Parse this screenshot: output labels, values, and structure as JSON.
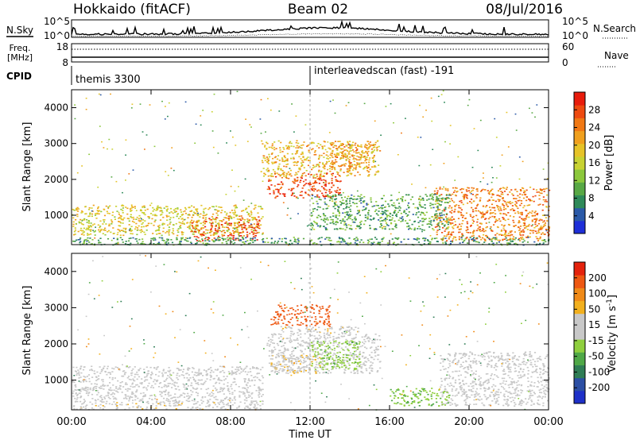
{
  "header": {
    "station": "Hokkaido (fitACF)",
    "beam": "Beam 02",
    "date": "08/Jul/2016"
  },
  "strips": {
    "nsky_label": "N.Sky",
    "nsky_ticks": [
      "10^5",
      "10^0"
    ],
    "nsearch_label": "N.Search",
    "nsearch_ticks": [
      "10^5",
      "10^0"
    ],
    "freq_label": "Freq.",
    "freq_unit": "[MHz]",
    "freq_ticks": [
      "18",
      "8"
    ],
    "nave_label": "Nave",
    "nave_ticks": [
      "60",
      "0"
    ],
    "cpid_label": "CPID",
    "cpid_segments": [
      {
        "label": "themis 3300",
        "start_hour": 0
      },
      {
        "label": "interleavedscan (fast) -191",
        "start_hour": 12
      }
    ]
  },
  "chart_data": [
    {
      "type": "heatmap",
      "quantity": "Power",
      "colorbar_label": "Power [dB]",
      "colorbar_ticks": [
        "28",
        "24",
        "20",
        "16",
        "12",
        "8",
        "4"
      ],
      "colorbar_range": [
        0,
        32
      ],
      "colorbar_colors": [
        "#1e2fd8",
        "#2b5aa8",
        "#2f8a5a",
        "#58a845",
        "#8cc83c",
        "#c8d232",
        "#e6c328",
        "#f0a01e",
        "#f07814",
        "#ee4a10",
        "#e81c0c"
      ],
      "ylabel": "Slant Range [km]",
      "y_ticks": [
        "4000",
        "3000",
        "2000",
        "1000"
      ],
      "ylim": [
        180,
        4500
      ],
      "xlim": [
        0,
        24
      ],
      "features": [
        {
          "x0": 0,
          "x1": 9.6,
          "y0": 450,
          "y1": 1300,
          "level": 18
        },
        {
          "x0": 6.0,
          "x1": 9.5,
          "y0": 300,
          "y1": 1000,
          "level": 27
        },
        {
          "x0": 9.8,
          "x1": 13.5,
          "y0": 1500,
          "y1": 2200,
          "level": 28
        },
        {
          "x0": 9.5,
          "x1": 15.5,
          "y0": 2100,
          "y1": 3100,
          "level": 20
        },
        {
          "x0": 13.0,
          "x1": 15.0,
          "y0": 2300,
          "y1": 3000,
          "level": 22
        },
        {
          "x0": 18.2,
          "x1": 24,
          "y0": 300,
          "y1": 1800,
          "level": 24
        },
        {
          "x0": 12.0,
          "x1": 19.0,
          "y0": 600,
          "y1": 1600,
          "level": 10
        },
        {
          "x0": 0,
          "x1": 24,
          "y0": 180,
          "y1": 400,
          "level": 9
        }
      ]
    },
    {
      "type": "heatmap",
      "quantity": "Velocity",
      "colorbar_label": "Velocity [m s",
      "colorbar_label_sup": "-1",
      "colorbar_label_end": "]",
      "colorbar_ticks": [
        "200",
        "100",
        "50",
        "15",
        "-15",
        "-50",
        "-100",
        "-200"
      ],
      "colorbar_colors": [
        "#1e30c8",
        "#2c4fa4",
        "#2f7d55",
        "#4fa847",
        "#8fcf3e",
        "#c8c8c8",
        "#c8c8c8",
        "#f2b01e",
        "#f08a18",
        "#ee5812",
        "#e4220c"
      ],
      "ylabel": "Slant Range [km]",
      "y_ticks": [
        "4000",
        "3000",
        "2000",
        "1000"
      ],
      "ylim": [
        180,
        4500
      ],
      "xlim": [
        0,
        24
      ],
      "features": [
        {
          "x0": 0,
          "x1": 9.6,
          "y0": 400,
          "y1": 1400,
          "velocity": 0
        },
        {
          "x0": 0,
          "x1": 9.6,
          "y0": 200,
          "y1": 400,
          "velocity": 40
        },
        {
          "x0": 9.8,
          "x1": 15.5,
          "y0": 1200,
          "y1": 2300,
          "velocity": 0
        },
        {
          "x0": 10.0,
          "x1": 12.5,
          "y0": 1200,
          "y1": 1700,
          "velocity": 45
        },
        {
          "x0": 10.5,
          "x1": 14.5,
          "y0": 2300,
          "y1": 2500,
          "velocity": 40
        },
        {
          "x0": 10.0,
          "x1": 13.0,
          "y0": 2500,
          "y1": 3100,
          "velocity": 180
        },
        {
          "x0": 12.0,
          "x1": 14.5,
          "y0": 1300,
          "y1": 2100,
          "velocity": -40
        },
        {
          "x0": 18.5,
          "x1": 24,
          "y0": 300,
          "y1": 1800,
          "velocity": 0
        },
        {
          "x0": 16.0,
          "x1": 19.0,
          "y0": 300,
          "y1": 800,
          "velocity": -45
        }
      ]
    }
  ],
  "x_axis": {
    "ticks": [
      "00:00",
      "04:00",
      "08:00",
      "12:00",
      "16:00",
      "20:00",
      "00:00"
    ],
    "label": "Time UT"
  }
}
